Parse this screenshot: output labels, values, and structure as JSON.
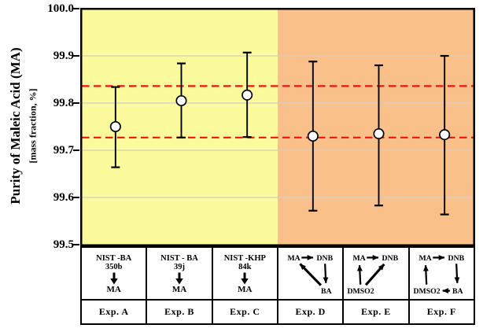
{
  "chart_data": {
    "type": "scatter",
    "title": "",
    "ylabel": "Purity of Maleic Acid (MA)",
    "ylabel_sub": "[mass fraction, %]",
    "ylim": [
      99.5,
      100.0
    ],
    "yticks": [
      100.0,
      99.9,
      99.8,
      99.7,
      99.6,
      99.5
    ],
    "ytick_labels": [
      "100.0",
      "99.9",
      "99.8",
      "99.7",
      "99.6",
      "99.5"
    ],
    "grid": true,
    "legend": "none",
    "reference_lines": {
      "values": [
        99.836,
        99.727
      ],
      "style": "dashed",
      "color": "#f21010"
    },
    "regions": [
      {
        "start": 0,
        "end": 3,
        "color": "#fbfa9d"
      },
      {
        "start": 3,
        "end": 6,
        "color": "#f9c189"
      }
    ],
    "marker": {
      "shape": "circle",
      "fill": "#ffffff",
      "stroke": "#000000"
    },
    "categories": [
      "Exp. A",
      "Exp. B",
      "Exp. C",
      "Exp. D",
      "Exp. E",
      "Exp. F"
    ],
    "series": [
      {
        "name": "Purity of MA",
        "points": [
          {
            "x": "Exp. A",
            "y": 99.75,
            "err_high": 99.834,
            "err_low": 99.664
          },
          {
            "x": "Exp. B",
            "y": 99.805,
            "err_high": 99.884,
            "err_low": 99.727
          },
          {
            "x": "Exp. C",
            "y": 99.817,
            "err_high": 99.907,
            "err_low": 99.728
          },
          {
            "x": "Exp. D",
            "y": 99.73,
            "err_high": 99.888,
            "err_low": 99.572
          },
          {
            "x": "Exp. E",
            "y": 99.735,
            "err_high": 99.88,
            "err_low": 99.583
          },
          {
            "x": "Exp. F",
            "y": 99.733,
            "err_high": 99.9,
            "err_low": 99.564
          }
        ]
      }
    ]
  },
  "x_axis_table": {
    "experiments": [
      {
        "label": "Exp. A",
        "diagram": {
          "kind": "chain",
          "source": "NIST -BA",
          "lot": "350b",
          "target": "MA"
        }
      },
      {
        "label": "Exp. B",
        "diagram": {
          "kind": "chain",
          "source": "NIST - BA",
          "lot": "39j",
          "target": "MA"
        }
      },
      {
        "label": "Exp. C",
        "diagram": {
          "kind": "chain",
          "source": "NIST -KHP",
          "lot": "84k",
          "target": "MA"
        }
      },
      {
        "label": "Exp. D",
        "diagram": {
          "kind": "graph",
          "nodes": [
            {
              "pos": "tl",
              "label": "MA"
            },
            {
              "pos": "tr",
              "label": "DNB"
            },
            {
              "pos": "br",
              "label": "BA"
            }
          ],
          "arrows": [
            {
              "from": "tl",
              "to": "tr"
            },
            {
              "from": "tr",
              "to": "br"
            },
            {
              "from": "br",
              "to": "tl",
              "thick": true
            }
          ]
        }
      },
      {
        "label": "Exp. E",
        "diagram": {
          "kind": "graph",
          "nodes": [
            {
              "pos": "tl",
              "label": "MA"
            },
            {
              "pos": "tr",
              "label": "DNB"
            },
            {
              "pos": "bl",
              "label": "DMSO2"
            }
          ],
          "arrows": [
            {
              "from": "tl",
              "to": "tr"
            },
            {
              "from": "bl",
              "to": "tl"
            },
            {
              "from": "bl",
              "to": "tr",
              "thick": true
            }
          ]
        }
      },
      {
        "label": "Exp. F",
        "diagram": {
          "kind": "graph",
          "nodes": [
            {
              "pos": "tl",
              "label": "MA"
            },
            {
              "pos": "tr",
              "label": "DNB"
            },
            {
              "pos": "bl",
              "label": "DMSO2"
            },
            {
              "pos": "br",
              "label": "BA"
            }
          ],
          "arrows": [
            {
              "from": "tl",
              "to": "tr"
            },
            {
              "from": "tr",
              "to": "br"
            },
            {
              "from": "br",
              "to": "bl"
            },
            {
              "from": "bl",
              "to": "tl"
            }
          ]
        }
      }
    ]
  },
  "colors": {
    "band_left": "#fbfa9d",
    "band_right": "#f9c189",
    "reference_line": "#f21010",
    "gridline": "#cfcfcf",
    "axis": "#000000",
    "marker_fill": "#ffffff"
  }
}
